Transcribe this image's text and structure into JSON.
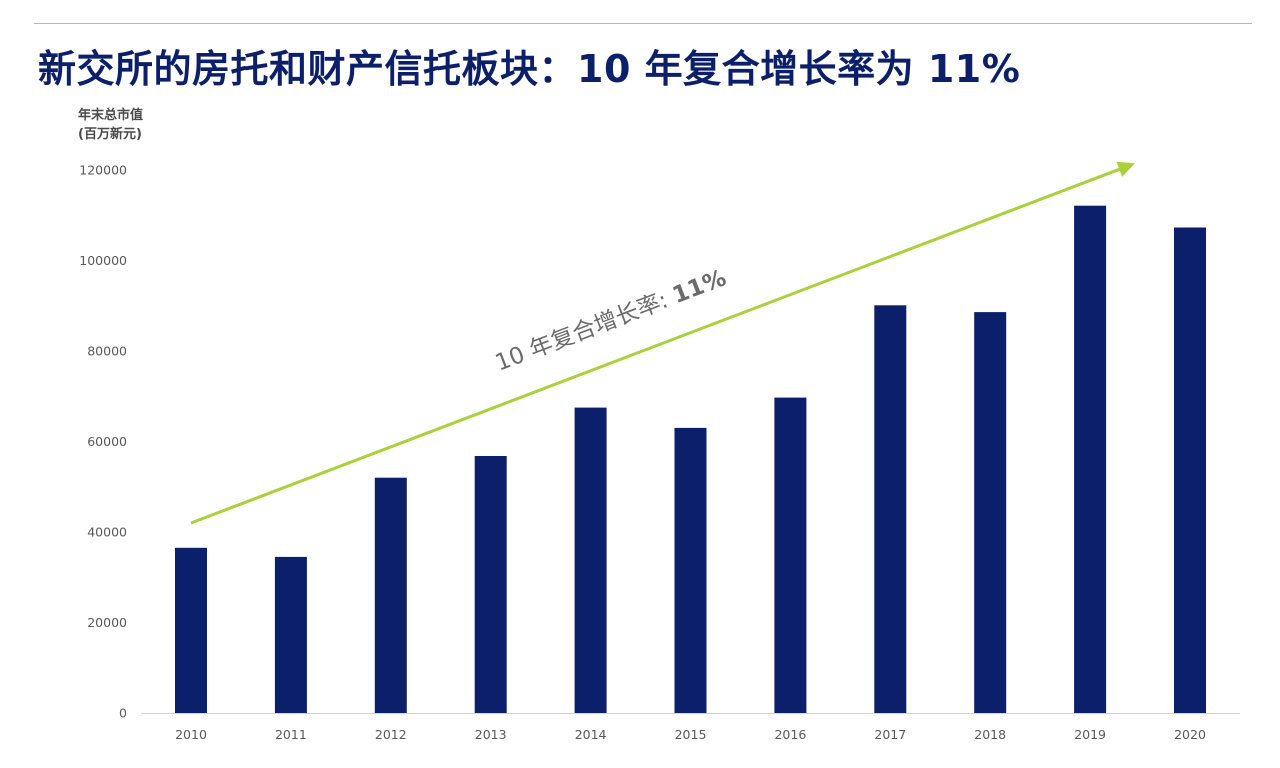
{
  "slide": {
    "title": "新交所的房托和财产信托板块：10 年复合增长率为 11%"
  },
  "chart_data": {
    "type": "bar",
    "ylabel_lines": [
      "年末总市值",
      "(百万新元)"
    ],
    "categories": [
      "2010",
      "2011",
      "2012",
      "2013",
      "2014",
      "2015",
      "2016",
      "2017",
      "2018",
      "2019",
      "2020"
    ],
    "values": [
      36500,
      34500,
      52000,
      56800,
      67500,
      63000,
      69700,
      90100,
      88600,
      112100,
      107300
    ],
    "ylim": [
      0,
      120000
    ],
    "yticks": [
      "0",
      "20000",
      "40000",
      "60000",
      "80000",
      "100000",
      "120000"
    ],
    "grid": false,
    "legend": "none",
    "bar_color": "#0c1f6b",
    "annotation": {
      "text_prefix": "10 年复合增长率: ",
      "text_value": "11%",
      "arrow_color": "#a8d13a",
      "arrow_from": {
        "x": "2010",
        "y": 42000
      },
      "arrow_to": {
        "x": "2019",
        "y": 121500
      }
    }
  }
}
